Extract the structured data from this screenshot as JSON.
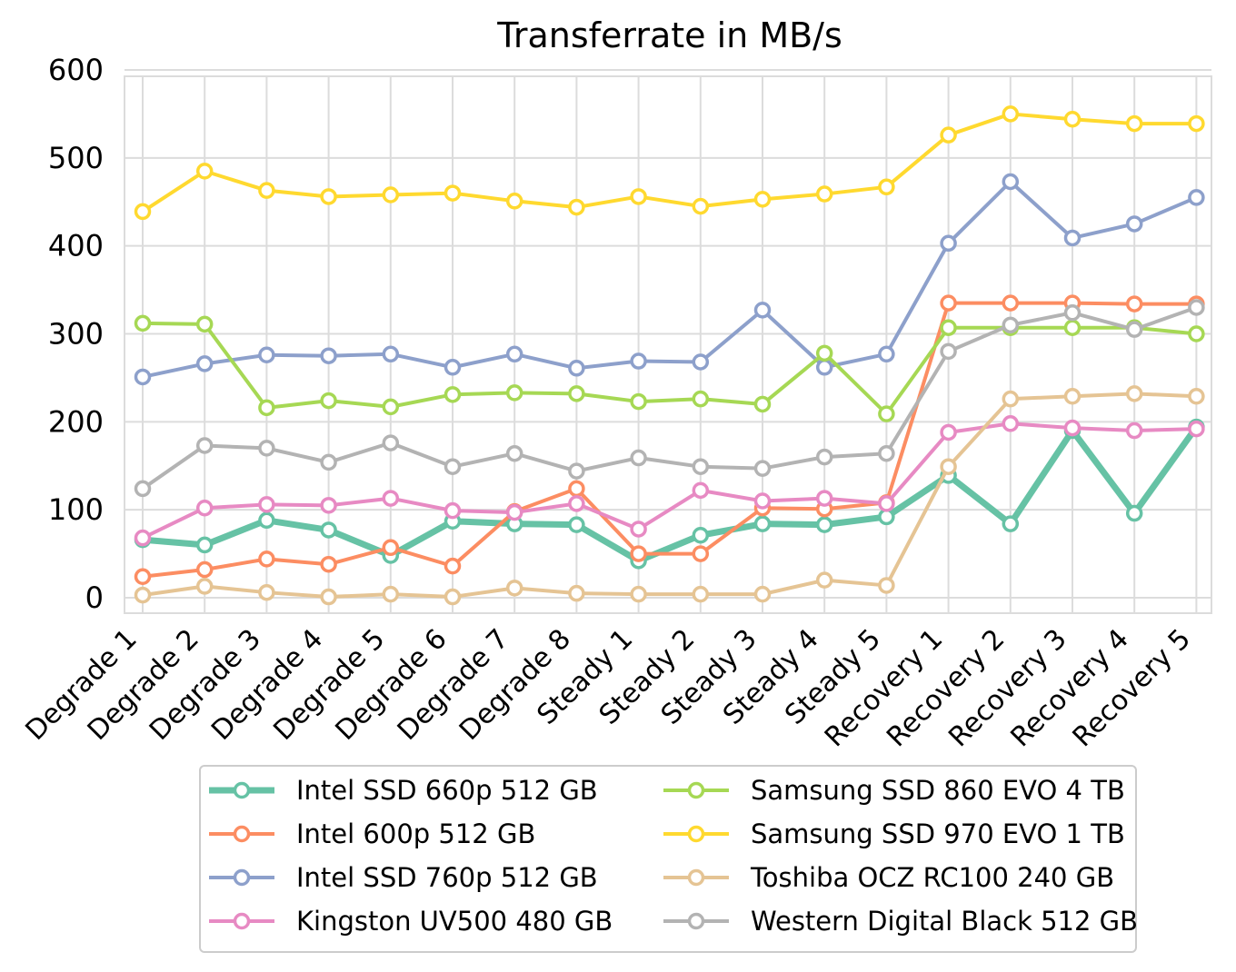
{
  "chart_data": {
    "type": "line",
    "title": "Transferrate in MB/s",
    "xlabel": "",
    "ylabel": "",
    "ylim": [
      0,
      600
    ],
    "yticks": [
      0,
      100,
      200,
      300,
      400,
      500,
      600
    ],
    "grid": true,
    "legend_position": "bottom",
    "categories": [
      "Degrade 1",
      "Degrade 2",
      "Degrade 3",
      "Degrade 4",
      "Degrade 5",
      "Degrade 6",
      "Degrade 7",
      "Degrade 8",
      "Steady 1",
      "Steady 2",
      "Steady 3",
      "Steady 4",
      "Steady 5",
      "Recovery 1",
      "Recovery 2",
      "Recovery 3",
      "Recovery 4",
      "Recovery 5"
    ],
    "series": [
      {
        "name": "Intel SSD 660p 512 GB",
        "color": "#66c2a5",
        "width": 7,
        "values": [
          66,
          60,
          88,
          77,
          48,
          87,
          84,
          83,
          42,
          71,
          84,
          83,
          92,
          139,
          84,
          190,
          96,
          194
        ]
      },
      {
        "name": "Intel 600p 512 GB",
        "color": "#fc8d62",
        "width": 4,
        "values": [
          24,
          32,
          44,
          38,
          57,
          36,
          98,
          124,
          50,
          50,
          102,
          101,
          108,
          335,
          335,
          335,
          334,
          334
        ]
      },
      {
        "name": "Intel SSD 760p 512 GB",
        "color": "#8da0cb",
        "width": 4,
        "values": [
          251,
          266,
          276,
          275,
          277,
          262,
          277,
          261,
          269,
          268,
          327,
          262,
          277,
          403,
          473,
          409,
          425,
          455
        ]
      },
      {
        "name": "Kingston UV500 480 GB",
        "color": "#e78ac3",
        "width": 4,
        "values": [
          68,
          102,
          106,
          105,
          113,
          99,
          97,
          107,
          78,
          122,
          110,
          113,
          107,
          188,
          198,
          193,
          190,
          192
        ]
      },
      {
        "name": "Samsung SSD 860 EVO 4 TB",
        "color": "#a6d854",
        "width": 4,
        "values": [
          312,
          311,
          216,
          224,
          217,
          231,
          233,
          232,
          223,
          226,
          220,
          278,
          209,
          307,
          307,
          307,
          307,
          300
        ]
      },
      {
        "name": "Samsung SSD 970 EVO 1 TB",
        "color": "#ffd92f",
        "width": 4,
        "values": [
          439,
          485,
          463,
          456,
          458,
          460,
          451,
          444,
          456,
          445,
          453,
          459,
          467,
          526,
          550,
          544,
          539,
          539
        ]
      },
      {
        "name": "Toshiba OCZ RC100 240 GB",
        "color": "#e5c494",
        "width": 4,
        "values": [
          3,
          13,
          6,
          1,
          4,
          1,
          11,
          5,
          4,
          4,
          4,
          20,
          14,
          149,
          226,
          229,
          232,
          229
        ]
      },
      {
        "name": "Western Digital Black 512 GB",
        "color": "#b3b3b3",
        "width": 4,
        "values": [
          124,
          173,
          170,
          154,
          176,
          149,
          164,
          144,
          159,
          149,
          147,
          160,
          164,
          280,
          310,
          324,
          305,
          330
        ]
      }
    ]
  }
}
